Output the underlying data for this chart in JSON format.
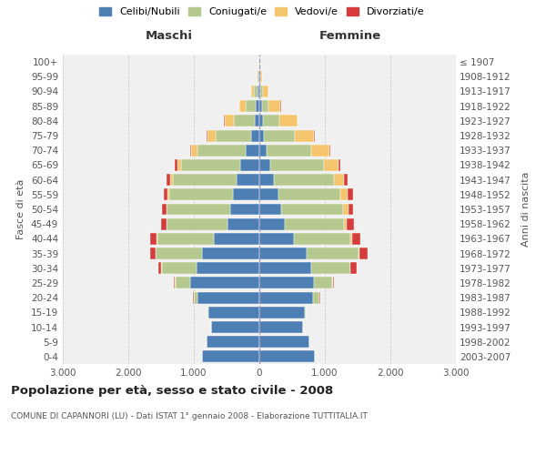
{
  "age_groups": [
    "0-4",
    "5-9",
    "10-14",
    "15-19",
    "20-24",
    "25-29",
    "30-34",
    "35-39",
    "40-44",
    "45-49",
    "50-54",
    "55-59",
    "60-64",
    "65-69",
    "70-74",
    "75-79",
    "80-84",
    "85-89",
    "90-94",
    "95-99",
    "100+"
  ],
  "birth_years": [
    "2003-2007",
    "1998-2002",
    "1993-1997",
    "1988-1992",
    "1983-1987",
    "1978-1982",
    "1973-1977",
    "1968-1972",
    "1963-1967",
    "1958-1962",
    "1953-1957",
    "1948-1952",
    "1943-1947",
    "1938-1942",
    "1933-1937",
    "1928-1932",
    "1923-1927",
    "1918-1922",
    "1913-1917",
    "1908-1912",
    "≤ 1907"
  ],
  "male_celibi": [
    870,
    810,
    730,
    780,
    950,
    1060,
    960,
    870,
    700,
    490,
    440,
    400,
    350,
    290,
    210,
    130,
    75,
    50,
    30,
    10,
    5
  ],
  "male_coniugati": [
    0,
    0,
    5,
    15,
    50,
    220,
    530,
    710,
    860,
    920,
    970,
    980,
    970,
    900,
    730,
    540,
    320,
    160,
    55,
    15,
    5
  ],
  "male_vedovi": [
    0,
    0,
    0,
    0,
    5,
    5,
    5,
    5,
    5,
    5,
    10,
    20,
    40,
    65,
    100,
    120,
    130,
    90,
    40,
    10,
    2
  ],
  "male_divorziati": [
    0,
    0,
    0,
    0,
    5,
    15,
    50,
    75,
    100,
    80,
    70,
    65,
    50,
    35,
    20,
    15,
    10,
    5,
    2,
    0,
    0
  ],
  "female_celibi": [
    850,
    760,
    660,
    700,
    820,
    840,
    790,
    720,
    530,
    395,
    335,
    285,
    225,
    160,
    110,
    70,
    50,
    35,
    20,
    8,
    3
  ],
  "female_coniugati": [
    0,
    0,
    5,
    15,
    90,
    275,
    595,
    790,
    855,
    890,
    945,
    955,
    910,
    830,
    680,
    470,
    250,
    100,
    35,
    8,
    2
  ],
  "female_vedovi": [
    0,
    0,
    0,
    0,
    5,
    5,
    10,
    15,
    25,
    55,
    75,
    110,
    160,
    215,
    280,
    300,
    280,
    190,
    85,
    25,
    2
  ],
  "female_divorziati": [
    0,
    0,
    0,
    0,
    10,
    25,
    85,
    130,
    130,
    100,
    80,
    80,
    50,
    30,
    20,
    10,
    10,
    5,
    2,
    0,
    0
  ],
  "color_celibi": "#4d7fb5",
  "color_coniugati": "#b5c98e",
  "color_vedovi": "#f5c56d",
  "color_divorziati": "#d63c3c",
  "xlim": 3000,
  "xlabel_maschi": "Maschi",
  "xlabel_femmine": "Femmine",
  "ylabel_left": "Fasce di età",
  "ylabel_right": "Anni di nascita",
  "title": "Popolazione per età, sesso e stato civile - 2008",
  "subtitle": "COMUNE DI CAPANNORI (LU) - Dati ISTAT 1° gennaio 2008 - Elaborazione TUTTITALIA.IT",
  "legend_labels": [
    "Celibi/Nubili",
    "Coniugati/e",
    "Vedovi/e",
    "Divorziati/e"
  ],
  "background_color": "#f0f0f0",
  "grid_color": "#cccccc"
}
